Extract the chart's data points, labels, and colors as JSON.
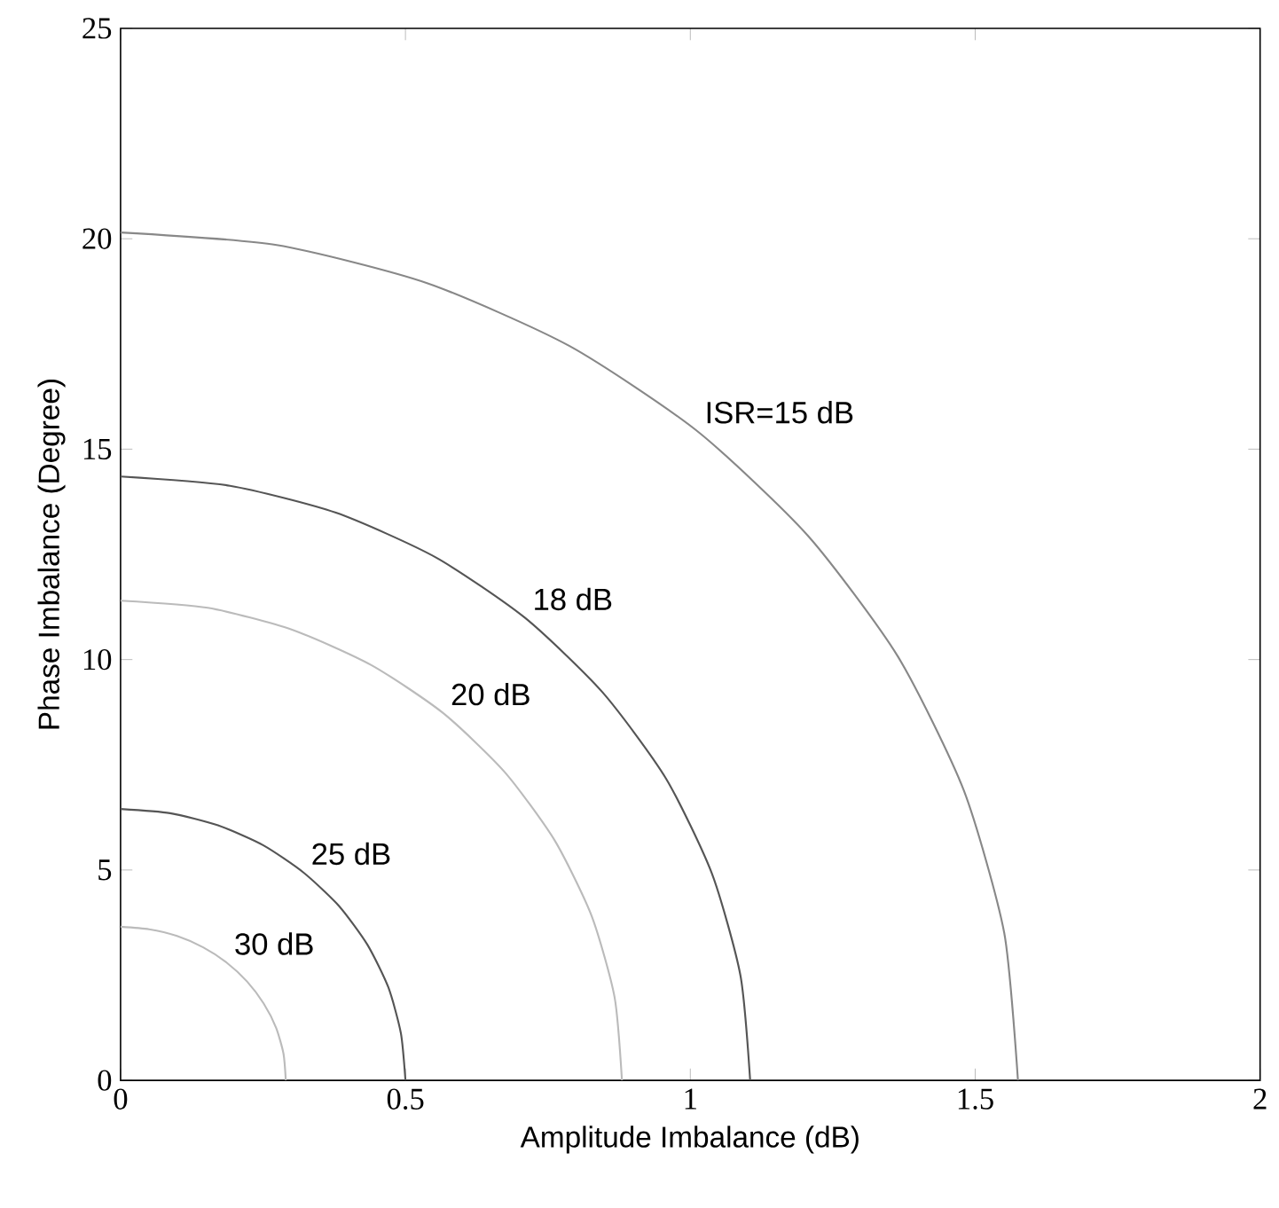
{
  "chart_data": {
    "type": "line",
    "xlabel": "Amplitude Imbalance (dB)",
    "ylabel": "Phase Imbalance (Degree)",
    "xlim": [
      0,
      2
    ],
    "ylim": [
      0,
      25
    ],
    "xticks": [
      0,
      0.5,
      1,
      1.5,
      2
    ],
    "yticks": [
      0,
      5,
      10,
      15,
      20,
      25
    ],
    "grid": false,
    "marker": "none",
    "line_style": "solid",
    "series": [
      {
        "name": "ISR=15 dB",
        "color": "#888888",
        "x": [
          0,
          0.274,
          0.539,
          0.788,
          1.012,
          1.206,
          1.364,
          1.48,
          1.551,
          1.575
        ],
        "values": [
          20.15,
          19.85,
          18.94,
          17.45,
          15.43,
          12.95,
          10.08,
          6.89,
          3.5,
          0
        ]
      },
      {
        "name": "18 dB",
        "color": "#555555",
        "x": [
          0,
          0.192,
          0.378,
          0.553,
          0.71,
          0.846,
          0.957,
          1.038,
          1.088,
          1.105
        ],
        "values": [
          14.35,
          14.13,
          13.49,
          12.43,
          10.99,
          9.22,
          7.18,
          4.91,
          2.49,
          0
        ]
      },
      {
        "name": "20 dB",
        "color": "#bbbbbb",
        "x": [
          0,
          0.153,
          0.301,
          0.44,
          0.566,
          0.674,
          0.762,
          0.827,
          0.867,
          0.88
        ],
        "values": [
          11.4,
          11.23,
          10.71,
          9.87,
          8.73,
          7.33,
          5.7,
          3.9,
          1.98,
          0
        ]
      },
      {
        "name": "25 dB",
        "color": "#555555",
        "x": [
          0,
          0.087,
          0.171,
          0.25,
          0.321,
          0.383,
          0.433,
          0.47,
          0.492,
          0.5
        ],
        "values": [
          6.45,
          6.35,
          6.06,
          5.59,
          4.94,
          4.15,
          3.23,
          2.21,
          1.12,
          0
        ]
      },
      {
        "name": "30 dB",
        "color": "#bbbbbb",
        "x": [
          0,
          0.05,
          0.099,
          0.145,
          0.186,
          0.222,
          0.251,
          0.273,
          0.286,
          0.29
        ],
        "values": [
          3.65,
          3.59,
          3.43,
          3.16,
          2.8,
          2.35,
          1.83,
          1.25,
          0.63,
          0
        ]
      }
    ]
  }
}
